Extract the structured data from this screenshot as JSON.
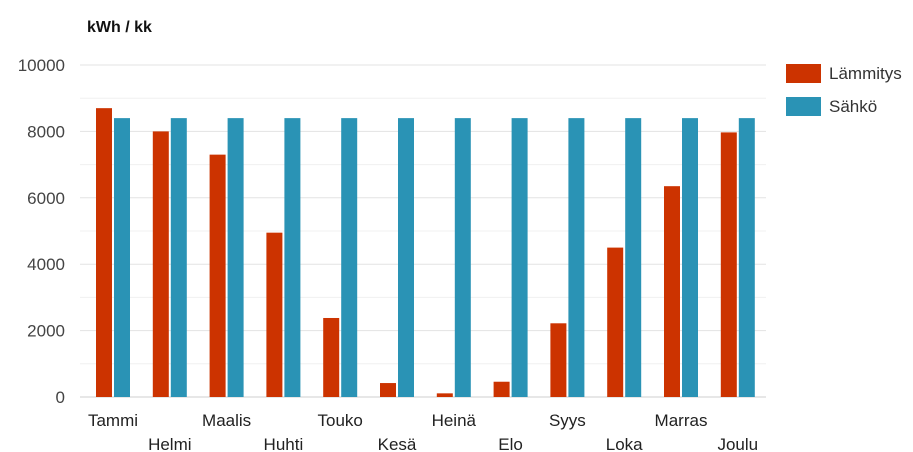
{
  "chart_data": {
    "type": "bar",
    "title": "kWh / kk",
    "xlabel": "",
    "ylabel": "",
    "ylim": [
      0,
      10000
    ],
    "yticks": [
      0,
      2000,
      4000,
      6000,
      8000,
      10000
    ],
    "grid": true,
    "legend_position": "right",
    "categories": [
      "Tammi",
      "Helmi",
      "Maalis",
      "Huhti",
      "Touko",
      "Kesä",
      "Heinä",
      "Elo",
      "Syys",
      "Loka",
      "Marras",
      "Joulu"
    ],
    "series": [
      {
        "name": "Lämmitys",
        "color": "#cc3300",
        "values": [
          8700,
          8000,
          7300,
          4950,
          2380,
          420,
          110,
          460,
          2220,
          4500,
          6350,
          7970
        ]
      },
      {
        "name": "Sähkö",
        "color": "#2a93b5",
        "values": [
          8400,
          8400,
          8400,
          8400,
          8400,
          8400,
          8400,
          8400,
          8400,
          8400,
          8400,
          8400
        ]
      }
    ]
  }
}
